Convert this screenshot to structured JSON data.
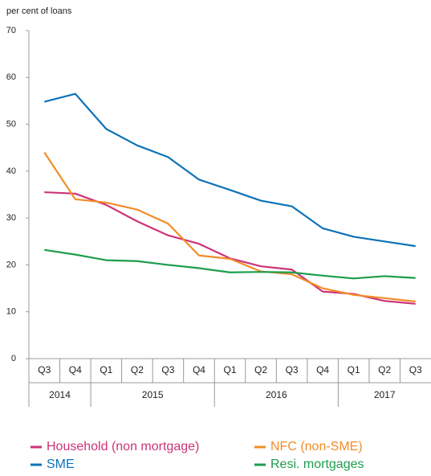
{
  "chart_data": {
    "type": "line",
    "y_axis_label": "per cent of loans",
    "categories": [
      "Q3",
      "Q4",
      "Q1",
      "Q2",
      "Q3",
      "Q4",
      "Q1",
      "Q2",
      "Q3",
      "Q4",
      "Q1",
      "Q2",
      "Q3"
    ],
    "groups": [
      "2014",
      null,
      "2015",
      null,
      null,
      null,
      "2016",
      null,
      null,
      null,
      "2017",
      null,
      null
    ],
    "series": [
      {
        "name": "Household (non mortgage)",
        "color": "#cc3377",
        "values": [
          35.5,
          35.2,
          32.8,
          29.3,
          26.3,
          24.5,
          21.4,
          19.7,
          19,
          14.3,
          13.8,
          12.3,
          11.7
        ]
      },
      {
        "name": "SME",
        "color": "#0d72b9",
        "values": [
          54.8,
          56.5,
          49,
          45.5,
          43,
          38.2,
          36,
          33.7,
          32.5,
          27.8,
          26,
          25,
          24
        ]
      },
      {
        "name": "NFC (non-SME)",
        "color": "#f28c28",
        "values": [
          44,
          34,
          33.3,
          31.8,
          28.8,
          22,
          21.3,
          18.6,
          18,
          15,
          13.6,
          12.9,
          12.2
        ]
      },
      {
        "name": "Resi. mortgages",
        "color": "#1d9d4c",
        "values": [
          23.2,
          22.2,
          21,
          20.8,
          20,
          19.3,
          18.4,
          18.5,
          18.4,
          17.7,
          17.1,
          17.6,
          17.2
        ]
      }
    ],
    "ylim": [
      0,
      70
    ],
    "yticks": [
      0,
      10,
      20,
      30,
      40,
      50,
      60,
      70
    ],
    "grid": false
  }
}
